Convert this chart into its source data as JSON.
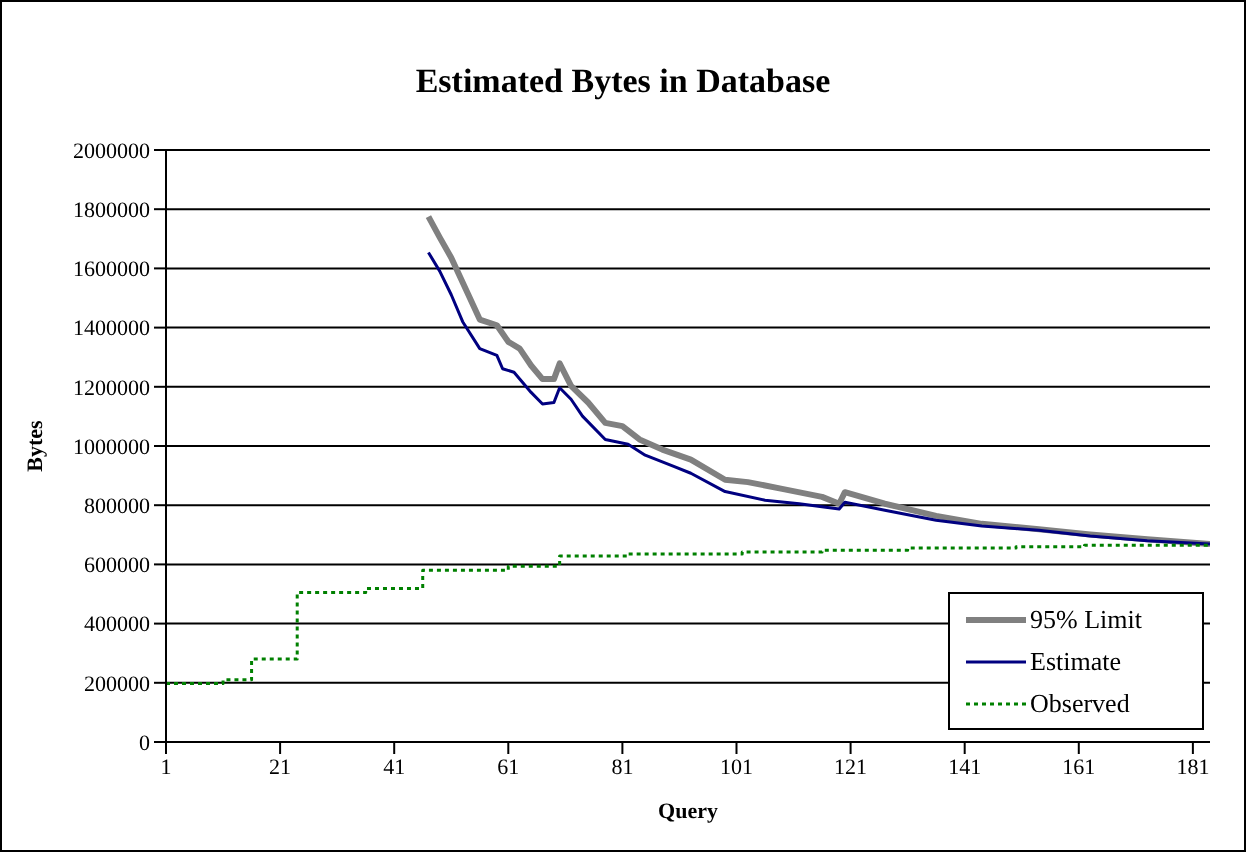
{
  "chart_data": {
    "type": "line",
    "title": "Estimated Bytes in Database",
    "xlabel": "Query",
    "ylabel": "Bytes",
    "xlim": [
      1,
      184
    ],
    "xticks": [
      1,
      21,
      41,
      61,
      81,
      101,
      121,
      141,
      161,
      181
    ],
    "ylim": [
      0,
      2000000
    ],
    "yticks": [
      0,
      200000,
      400000,
      600000,
      800000,
      1000000,
      1200000,
      1400000,
      1600000,
      1800000,
      2000000
    ],
    "grid": "y",
    "legend": "bottom right",
    "marker": "none",
    "series": [
      {
        "name": "95% Limit",
        "color": "#808080",
        "line_style": "solid",
        "x": [
          47,
          49,
          51,
          54,
          56,
          59,
          61,
          63,
          65,
          67,
          69,
          70,
          72,
          75,
          78,
          81,
          84,
          88,
          93,
          99,
          103,
          109,
          116,
          119,
          120,
          127,
          136,
          144,
          154,
          163,
          173,
          184
        ],
        "values": [
          1775000,
          1704000,
          1636000,
          1511000,
          1427000,
          1408000,
          1352000,
          1329000,
          1272000,
          1226000,
          1226000,
          1279000,
          1203000,
          1147000,
          1078000,
          1067000,
          1022000,
          988000,
          954000,
          886000,
          878000,
          855000,
          828000,
          805000,
          844000,
          805000,
          764000,
          737000,
          719000,
          701000,
          685000,
          669000
        ]
      },
      {
        "name": "Estimate",
        "color": "#000080",
        "line_style": "solid",
        "x": [
          47,
          49,
          51,
          53,
          56,
          59,
          60,
          62,
          65,
          67,
          69,
          70,
          72,
          74,
          78,
          82,
          85,
          90,
          93,
          99,
          106,
          112,
          119,
          120,
          127,
          136,
          144,
          154,
          163,
          173,
          184
        ],
        "values": [
          1654000,
          1590000,
          1511000,
          1420000,
          1329000,
          1306000,
          1261000,
          1249000,
          1181000,
          1142000,
          1147000,
          1197000,
          1158000,
          1101000,
          1022000,
          1006000,
          969000,
          931000,
          908000,
          846000,
          817000,
          805000,
          787000,
          810000,
          783000,
          749000,
          730000,
          715000,
          696000,
          680000,
          669000
        ]
      },
      {
        "name": "Observed",
        "type": "step",
        "color": "#008000",
        "line_style": "dotted",
        "x": [
          1,
          11,
          16,
          24,
          36,
          46,
          61,
          70,
          82,
          102,
          116,
          131,
          150,
          162,
          184
        ],
        "values": [
          198000,
          210000,
          280000,
          505000,
          519000,
          580000,
          594000,
          628000,
          635000,
          642000,
          648000,
          655000,
          660000,
          665000,
          669000
        ]
      }
    ]
  }
}
